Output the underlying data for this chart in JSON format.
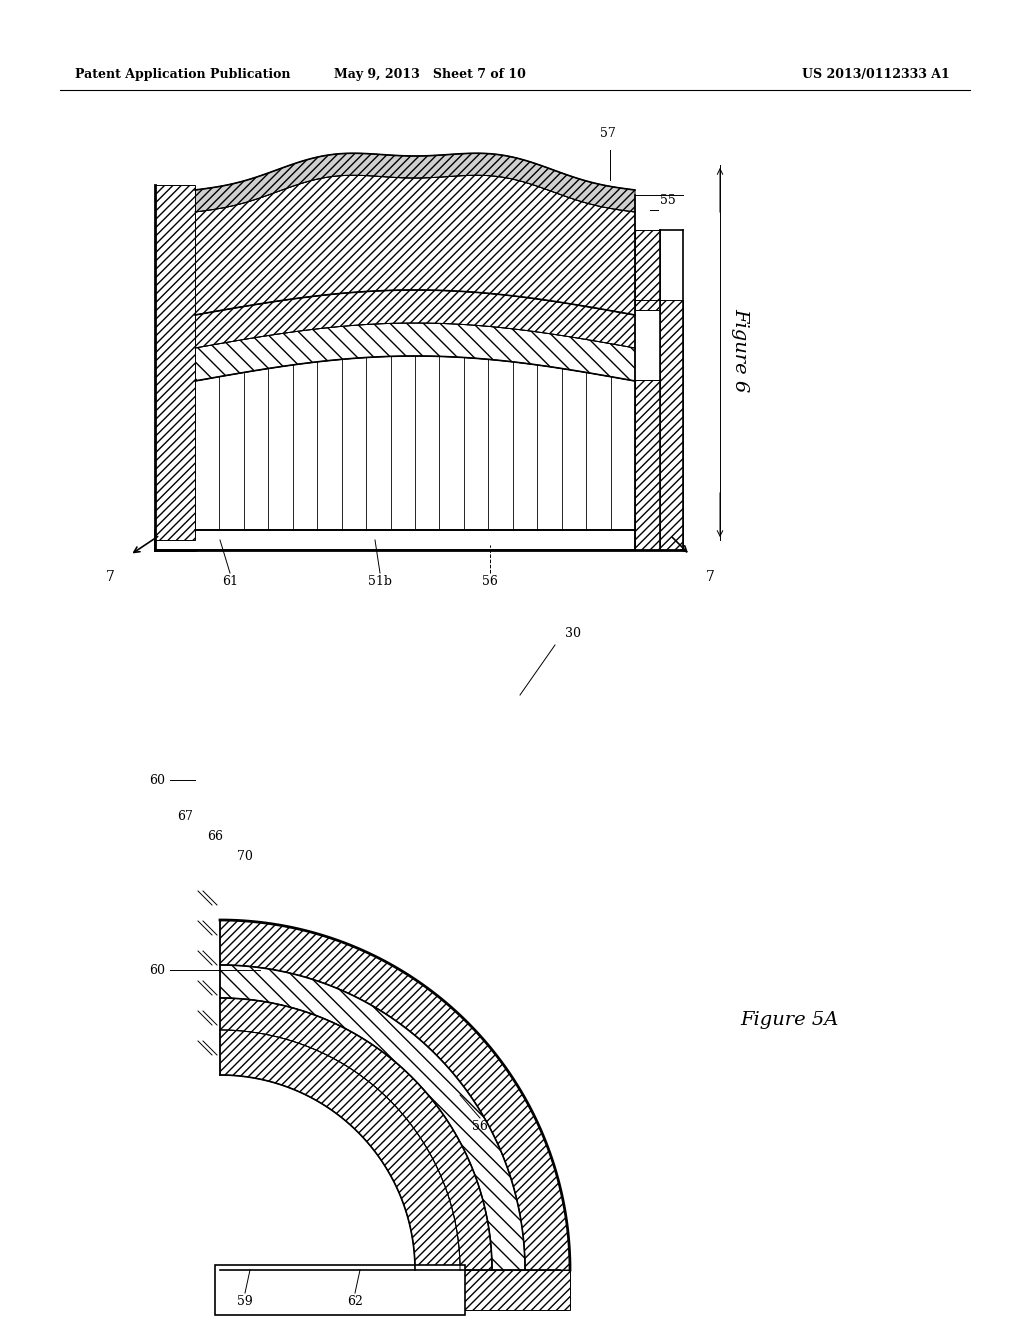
{
  "header_left": "Patent Application Publication",
  "header_center": "May 9, 2013   Sheet 7 of 10",
  "header_right": "US 2013/0112333 A1",
  "fig6_label": "Figure 6",
  "fig5a_label": "Figure 5A",
  "bg_color": "#ffffff",
  "line_color": "#000000"
}
